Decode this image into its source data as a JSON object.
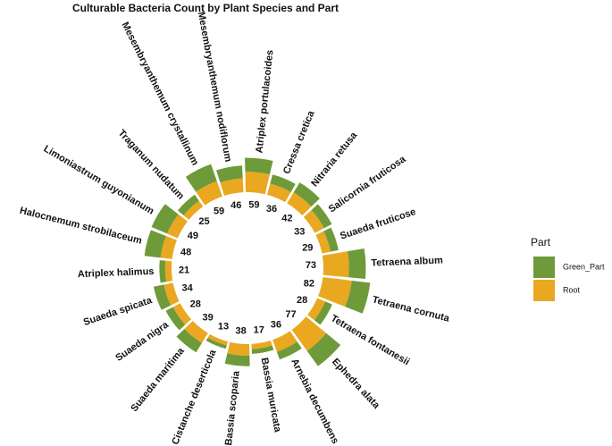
{
  "chart_data": {
    "type": "radial-stacked-bar",
    "title": "Culturable Bacteria Count by Plant Species and Part",
    "legend_title": "Part",
    "categories": [
      "Atriplex portulacoides",
      "Cressa cretica",
      "Nitraria retusa",
      "Salicornia fruticosa",
      "Suaeda fruticose",
      "Tetraena album",
      "Tetraena cornuta",
      "Tetraena fontanesii",
      "Ephedra alata",
      "Arnebia decumbens",
      "Bassia muricata",
      "Bassia scoparia",
      "Cistanche deserticola",
      "Suaeda maritima",
      "Suaeda nigra",
      "Suaeda spicata",
      "Atriplex halimus",
      "Halocnemum strobilaceum",
      "Limoniastrum guyonianum",
      "Traganum nudatum",
      "Mesembryanthemum crystallinum",
      "Mesembryanthemum nodiflorum"
    ],
    "totals": [
      59,
      36,
      42,
      33,
      29,
      73,
      82,
      28,
      77,
      36,
      17,
      38,
      13,
      39,
      28,
      34,
      21,
      48,
      49,
      25,
      59,
      46
    ],
    "series": [
      {
        "name": "Root",
        "color": "#e9a820",
        "values": [
          35,
          20,
          22,
          18,
          15,
          44,
          50,
          15,
          45,
          22,
          9,
          20,
          7,
          20,
          14,
          16,
          11,
          20,
          20,
          12,
          28,
          24
        ]
      },
      {
        "name": "Green_Part",
        "color": "#6e9a3a",
        "values": [
          24,
          16,
          20,
          15,
          14,
          29,
          32,
          13,
          32,
          14,
          8,
          18,
          6,
          19,
          14,
          18,
          10,
          28,
          29,
          13,
          31,
          22
        ]
      }
    ]
  }
}
